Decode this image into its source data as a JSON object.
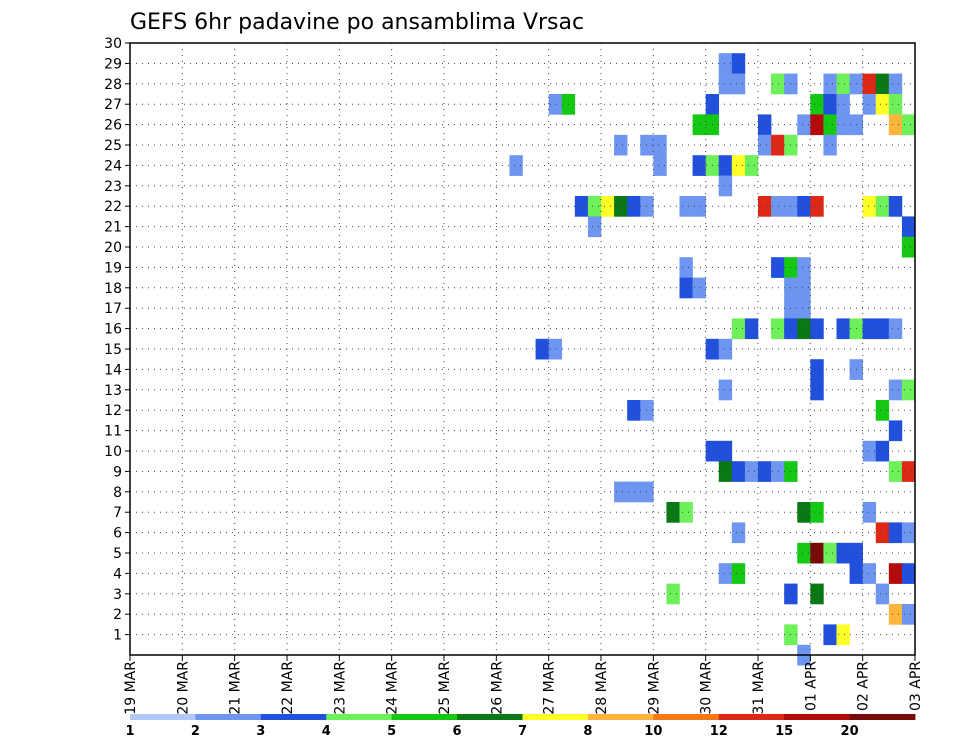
{
  "chart_data": {
    "type": "heatmap",
    "title": "GEFS 6hr padavine po ansamblima Vrsac",
    "x_tick_labels": [
      "19 MAR",
      "20 MAR",
      "21 MAR",
      "22 MAR",
      "23 MAR",
      "24 MAR",
      "25 MAR",
      "26 MAR",
      "27 MAR",
      "28 MAR",
      "29 MAR",
      "30 MAR",
      "31 MAR",
      "01 APR",
      "02 APR",
      "03 APR"
    ],
    "y_tick_labels": [
      "1",
      "2",
      "3",
      "4",
      "5",
      "6",
      "7",
      "8",
      "9",
      "10",
      "11",
      "12",
      "13",
      "14",
      "15",
      "16",
      "17",
      "18",
      "19",
      "20",
      "21",
      "22",
      "23",
      "24",
      "25",
      "26",
      "27",
      "28",
      "29",
      "30"
    ],
    "x_unit": "6-hour step from 19 MAR",
    "xlim": [
      0,
      60
    ],
    "ylim": [
      0,
      30
    ],
    "grid": true,
    "colorbar": {
      "labels": [
        "1",
        "2",
        "3",
        "4",
        "5",
        "6",
        "7",
        "8",
        "10",
        "12",
        "15",
        "20"
      ],
      "colors": [
        "#b4c8f8",
        "#6e96f0",
        "#2050dc",
        "#6ef05a",
        "#14c814",
        "#0a7814",
        "#ffff28",
        "#ffb43c",
        "#fa7814",
        "#dc2814",
        "#b40a0a",
        "#780a0a"
      ]
    },
    "cells": [
      [
        45,
        29,
        1
      ],
      [
        46,
        29,
        2
      ],
      [
        45,
        28,
        1
      ],
      [
        46,
        28,
        1
      ],
      [
        49,
        28,
        3
      ],
      [
        50,
        28,
        1
      ],
      [
        53,
        28,
        1
      ],
      [
        54,
        28,
        3
      ],
      [
        55,
        28,
        1
      ],
      [
        56,
        28,
        9
      ],
      [
        57,
        28,
        5
      ],
      [
        58,
        28,
        1
      ],
      [
        32,
        27,
        1
      ],
      [
        33,
        27,
        4
      ],
      [
        44,
        27,
        2
      ],
      [
        52,
        27,
        4
      ],
      [
        53,
        27,
        2
      ],
      [
        54,
        27,
        1
      ],
      [
        56,
        27,
        1
      ],
      [
        57,
        27,
        6
      ],
      [
        58,
        27,
        3
      ],
      [
        43,
        26,
        4
      ],
      [
        44,
        26,
        4
      ],
      [
        48,
        26,
        2
      ],
      [
        51,
        26,
        1
      ],
      [
        52,
        26,
        10
      ],
      [
        53,
        26,
        4
      ],
      [
        54,
        26,
        1
      ],
      [
        55,
        26,
        1
      ],
      [
        58,
        26,
        7
      ],
      [
        59,
        26,
        3
      ],
      [
        37,
        25,
        1
      ],
      [
        39,
        25,
        1
      ],
      [
        40,
        25,
        1
      ],
      [
        48,
        25,
        1
      ],
      [
        49,
        25,
        9
      ],
      [
        50,
        25,
        3
      ],
      [
        53,
        25,
        1
      ],
      [
        29,
        24,
        1
      ],
      [
        40,
        24,
        1
      ],
      [
        43,
        24,
        2
      ],
      [
        44,
        24,
        3
      ],
      [
        45,
        24,
        2
      ],
      [
        46,
        24,
        6
      ],
      [
        47,
        24,
        3
      ],
      [
        45,
        23,
        1
      ],
      [
        34,
        22,
        2
      ],
      [
        35,
        22,
        3
      ],
      [
        36,
        22,
        6
      ],
      [
        37,
        22,
        5
      ],
      [
        38,
        22,
        2
      ],
      [
        39,
        22,
        1
      ],
      [
        42,
        22,
        1
      ],
      [
        43,
        22,
        1
      ],
      [
        48,
        22,
        9
      ],
      [
        49,
        22,
        1
      ],
      [
        50,
        22,
        1
      ],
      [
        51,
        22,
        2
      ],
      [
        52,
        22,
        9
      ],
      [
        56,
        22,
        6
      ],
      [
        57,
        22,
        3
      ],
      [
        58,
        22,
        2
      ],
      [
        35,
        21,
        1
      ],
      [
        59,
        21,
        2
      ],
      [
        59,
        20,
        4
      ],
      [
        42,
        19,
        1
      ],
      [
        49,
        19,
        2
      ],
      [
        50,
        19,
        4
      ],
      [
        51,
        19,
        1
      ],
      [
        42,
        18,
        2
      ],
      [
        43,
        18,
        1
      ],
      [
        50,
        18,
        1
      ],
      [
        51,
        18,
        1
      ],
      [
        50,
        17,
        1
      ],
      [
        51,
        17,
        1
      ],
      [
        46,
        16,
        3
      ],
      [
        47,
        16,
        2
      ],
      [
        49,
        16,
        3
      ],
      [
        50,
        16,
        2
      ],
      [
        51,
        16,
        5
      ],
      [
        52,
        16,
        2
      ],
      [
        54,
        16,
        2
      ],
      [
        55,
        16,
        3
      ],
      [
        56,
        16,
        2
      ],
      [
        57,
        16,
        2
      ],
      [
        58,
        16,
        1
      ],
      [
        31,
        15,
        2
      ],
      [
        32,
        15,
        1
      ],
      [
        44,
        15,
        2
      ],
      [
        45,
        15,
        1
      ],
      [
        52,
        14,
        2
      ],
      [
        55,
        14,
        1
      ],
      [
        45,
        13,
        1
      ],
      [
        52,
        13,
        2
      ],
      [
        58,
        13,
        1
      ],
      [
        59,
        13,
        3
      ],
      [
        38,
        12,
        2
      ],
      [
        39,
        12,
        1
      ],
      [
        57,
        12,
        4
      ],
      [
        58,
        11,
        2
      ],
      [
        44,
        10,
        2
      ],
      [
        45,
        10,
        2
      ],
      [
        56,
        10,
        1
      ],
      [
        57,
        10,
        2
      ],
      [
        45,
        9,
        5
      ],
      [
        46,
        9,
        2
      ],
      [
        47,
        9,
        1
      ],
      [
        48,
        9,
        2
      ],
      [
        49,
        9,
        1
      ],
      [
        50,
        9,
        4
      ],
      [
        58,
        9,
        3
      ],
      [
        59,
        9,
        9
      ],
      [
        37,
        8,
        1
      ],
      [
        38,
        8,
        1
      ],
      [
        39,
        8,
        1
      ],
      [
        41,
        7,
        5
      ],
      [
        42,
        7,
        3
      ],
      [
        51,
        7,
        5
      ],
      [
        52,
        7,
        4
      ],
      [
        56,
        7,
        1
      ],
      [
        46,
        6,
        1
      ],
      [
        57,
        6,
        9
      ],
      [
        58,
        6,
        2
      ],
      [
        59,
        6,
        1
      ],
      [
        51,
        5,
        4
      ],
      [
        52,
        5,
        11
      ],
      [
        53,
        5,
        3
      ],
      [
        54,
        5,
        2
      ],
      [
        55,
        5,
        2
      ],
      [
        45,
        4,
        1
      ],
      [
        46,
        4,
        4
      ],
      [
        55,
        4,
        2
      ],
      [
        56,
        4,
        1
      ],
      [
        58,
        4,
        10
      ],
      [
        59,
        4,
        2
      ],
      [
        41,
        3,
        3
      ],
      [
        50,
        3,
        2
      ],
      [
        52,
        3,
        5
      ],
      [
        57,
        3,
        1
      ],
      [
        58,
        2,
        7
      ],
      [
        59,
        2,
        1
      ],
      [
        50,
        1,
        3
      ],
      [
        53,
        1,
        2
      ],
      [
        54,
        1,
        6
      ],
      [
        51,
        0,
        1
      ]
    ]
  }
}
